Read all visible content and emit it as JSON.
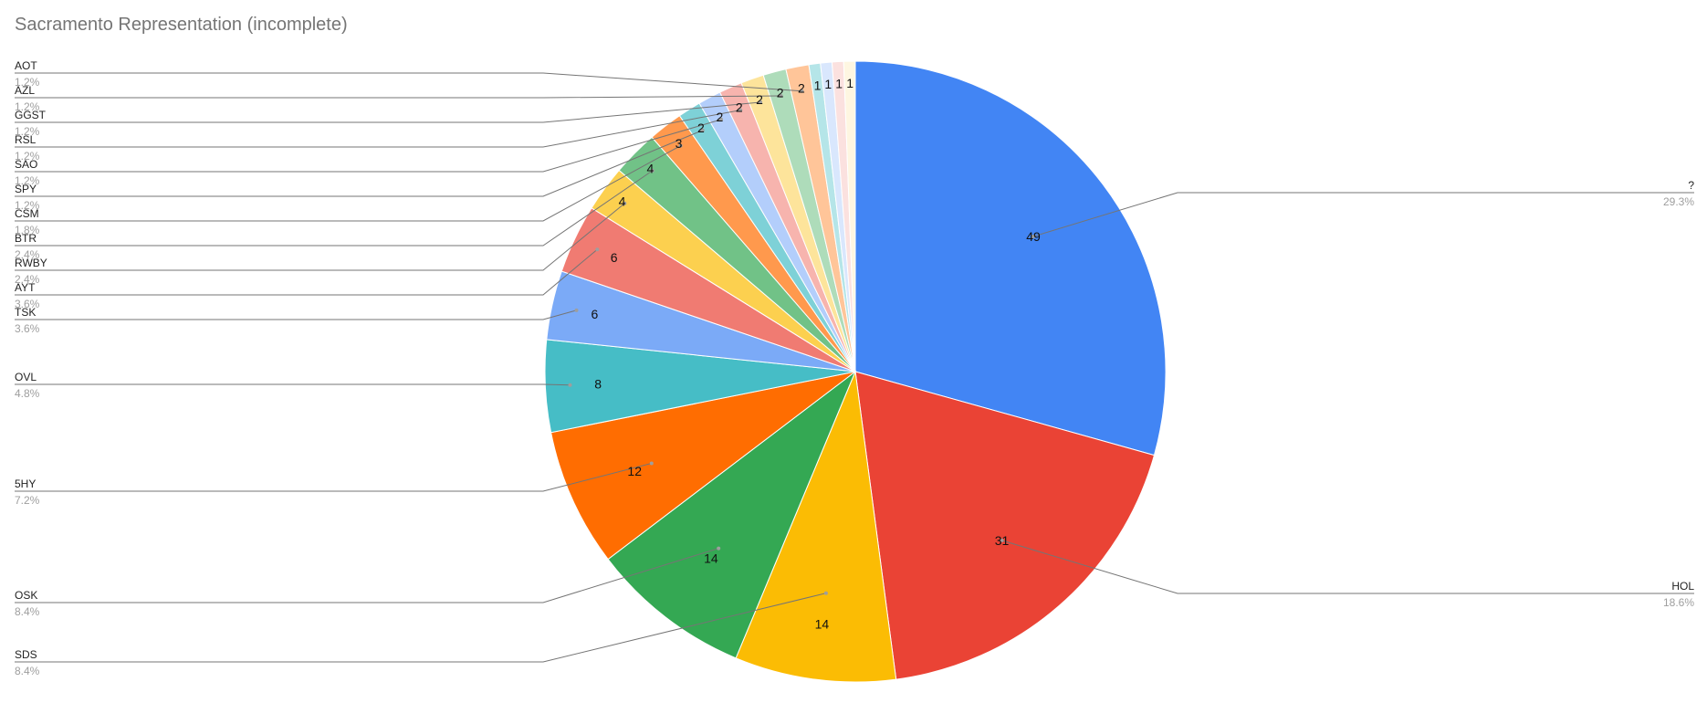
{
  "chart_data": {
    "type": "pie",
    "title": "Sacramento Representation (incomplete)",
    "slices": [
      {
        "label": "?",
        "value": 49,
        "percent": "29.3%",
        "color": "#4285f4"
      },
      {
        "label": "HOL",
        "value": 31,
        "percent": "18.6%",
        "color": "#ea4335"
      },
      {
        "label": "SDS",
        "value": 14,
        "percent": "8.4%",
        "color": "#fbbc04"
      },
      {
        "label": "OSK",
        "value": 14,
        "percent": "8.4%",
        "color": "#34a853"
      },
      {
        "label": "5HY",
        "value": 12,
        "percent": "7.2%",
        "color": "#ff6d01"
      },
      {
        "label": "OVL",
        "value": 8,
        "percent": "4.8%",
        "color": "#46bdc6"
      },
      {
        "label": "TSK",
        "value": 6,
        "percent": "3.6%",
        "color": "#7baaf7"
      },
      {
        "label": "AYT",
        "value": 6,
        "percent": "3.6%",
        "color": "#f07b72"
      },
      {
        "label": "RWBY",
        "value": 4,
        "percent": "2.4%",
        "color": "#fcd04f"
      },
      {
        "label": "BTR",
        "value": 4,
        "percent": "2.4%",
        "color": "#71c287"
      },
      {
        "label": "CSM",
        "value": 3,
        "percent": "1.8%",
        "color": "#ff994d"
      },
      {
        "label": "SPY",
        "value": 2,
        "percent": "1.2%",
        "color": "#7ed1d7"
      },
      {
        "label": "SAO",
        "value": 2,
        "percent": "1.2%",
        "color": "#b3cefb"
      },
      {
        "label": "RSL",
        "value": 2,
        "percent": "1.2%",
        "color": "#f7b4ae"
      },
      {
        "label": "GGST",
        "value": 2,
        "percent": "1.2%",
        "color": "#fde49b"
      },
      {
        "label": "AZL",
        "value": 2,
        "percent": "1.2%",
        "color": "#aedcba"
      },
      {
        "label": "AOT",
        "value": 2,
        "percent": "1.2%",
        "color": "#ffc599"
      },
      {
        "label": "",
        "value": 1,
        "percent": "",
        "color": "#b5e5e8"
      },
      {
        "label": "",
        "value": 1,
        "percent": "",
        "color": "#d9e7fd"
      },
      {
        "label": "",
        "value": 1,
        "percent": "",
        "color": "#fbe1df"
      },
      {
        "label": "",
        "value": 1,
        "percent": "",
        "color": "#fef6e1"
      }
    ],
    "legend": "outside labels with leader lines"
  }
}
